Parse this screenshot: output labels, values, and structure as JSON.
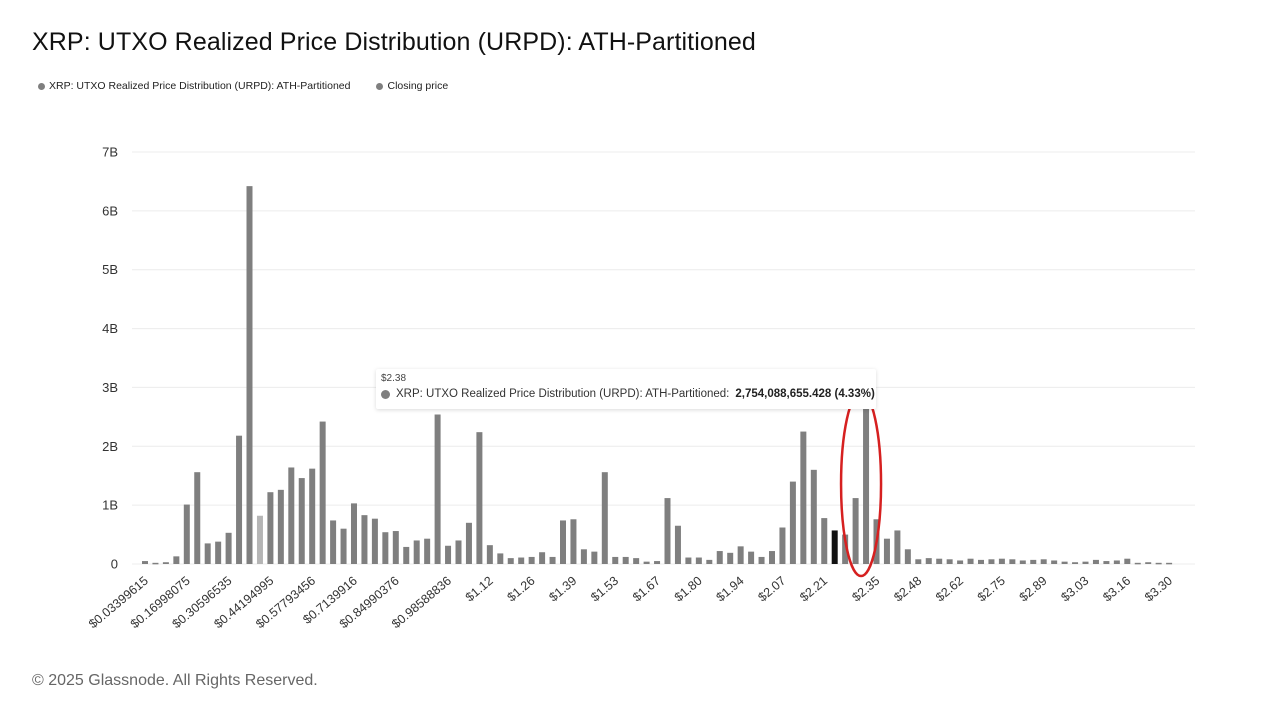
{
  "title": "XRP: UTXO Realized Price Distribution (URPD): ATH-Partitioned",
  "legend": [
    {
      "label": "XRP: UTXO Realized Price Distribution (URPD): ATH-Partitioned",
      "color": "#7f7f7f"
    },
    {
      "label": "Closing price",
      "color": "#7f7f7f"
    }
  ],
  "footer": "© 2025 Glassnode. All Rights Reserved.",
  "tooltip": {
    "x": "$2.38",
    "series": "XRP: UTXO Realized Price Distribution (URPD): ATH-Partitioned:",
    "value": "2,754,088,655.428 (4.33%)"
  },
  "chart_data": {
    "type": "bar",
    "ylim": [
      0,
      7000000000
    ],
    "yticks": [
      {
        "value": 0,
        "label": "0"
      },
      {
        "value": 1000000000,
        "label": "1B"
      },
      {
        "value": 2000000000,
        "label": "2B"
      },
      {
        "value": 3000000000,
        "label": "3B"
      },
      {
        "value": 4000000000,
        "label": "4B"
      },
      {
        "value": 5000000000,
        "label": "5B"
      },
      {
        "value": 6000000000,
        "label": "6B"
      },
      {
        "value": 7000000000,
        "label": "7B"
      }
    ],
    "xtick_labels": [
      {
        "index": 0,
        "label": "$0.03399615"
      },
      {
        "index": 4,
        "label": "$0.16998075"
      },
      {
        "index": 8,
        "label": "$0.30596535"
      },
      {
        "index": 12,
        "label": "$0.44194995"
      },
      {
        "index": 16,
        "label": "$0.57793456"
      },
      {
        "index": 20,
        "label": "$0.7139916"
      },
      {
        "index": 24,
        "label": "$0.84990376"
      },
      {
        "index": 29,
        "label": "$0.98588836"
      },
      {
        "index": 33,
        "label": "$1.12"
      },
      {
        "index": 37,
        "label": "$1.26"
      },
      {
        "index": 41,
        "label": "$1.39"
      },
      {
        "index": 45,
        "label": "$1.53"
      },
      {
        "index": 49,
        "label": "$1.67"
      },
      {
        "index": 53,
        "label": "$1.80"
      },
      {
        "index": 57,
        "label": "$1.94"
      },
      {
        "index": 61,
        "label": "$2.07"
      },
      {
        "index": 65,
        "label": "$2.21"
      },
      {
        "index": 70,
        "label": "$2.35"
      },
      {
        "index": 74,
        "label": "$2.48"
      },
      {
        "index": 78,
        "label": "$2.62"
      },
      {
        "index": 82,
        "label": "$2.75"
      },
      {
        "index": 86,
        "label": "$2.89"
      },
      {
        "index": 90,
        "label": "$3.03"
      },
      {
        "index": 94,
        "label": "$3.16"
      },
      {
        "index": 98,
        "label": "$3.30"
      }
    ],
    "values": [
      50000000,
      20000000,
      30000000,
      130000000,
      1010000000,
      1560000000,
      350000000,
      380000000,
      530000000,
      2180000000,
      6420000000,
      820000000,
      1220000000,
      1260000000,
      1640000000,
      1460000000,
      1620000000,
      2420000000,
      740000000,
      600000000,
      1030000000,
      830000000,
      770000000,
      540000000,
      560000000,
      290000000,
      400000000,
      430000000,
      2540000000,
      310000000,
      400000000,
      700000000,
      2240000000,
      320000000,
      180000000,
      100000000,
      110000000,
      120000000,
      200000000,
      120000000,
      740000000,
      760000000,
      250000000,
      210000000,
      1560000000,
      120000000,
      120000000,
      100000000,
      40000000,
      50000000,
      1120000000,
      650000000,
      110000000,
      110000000,
      70000000,
      220000000,
      190000000,
      300000000,
      210000000,
      120000000,
      220000000,
      620000000,
      1400000000,
      2250000000,
      1600000000,
      780000000,
      570000000,
      500000000,
      1120000000,
      2754088655,
      760000000,
      430000000,
      570000000,
      250000000,
      80000000,
      100000000,
      90000000,
      80000000,
      60000000,
      90000000,
      70000000,
      80000000,
      90000000,
      80000000,
      60000000,
      70000000,
      80000000,
      60000000,
      40000000,
      30000000,
      40000000,
      70000000,
      50000000,
      60000000,
      90000000,
      20000000,
      30000000,
      20000000,
      20000000
    ],
    "highlight_indices": {
      "dark": [
        66
      ],
      "light": [
        11
      ]
    },
    "series_color": "#7f7f7f",
    "annotation": {
      "type": "ellipse",
      "color": "#d62020",
      "target_index": 69
    },
    "grid": true,
    "legend_position": "top-left"
  }
}
